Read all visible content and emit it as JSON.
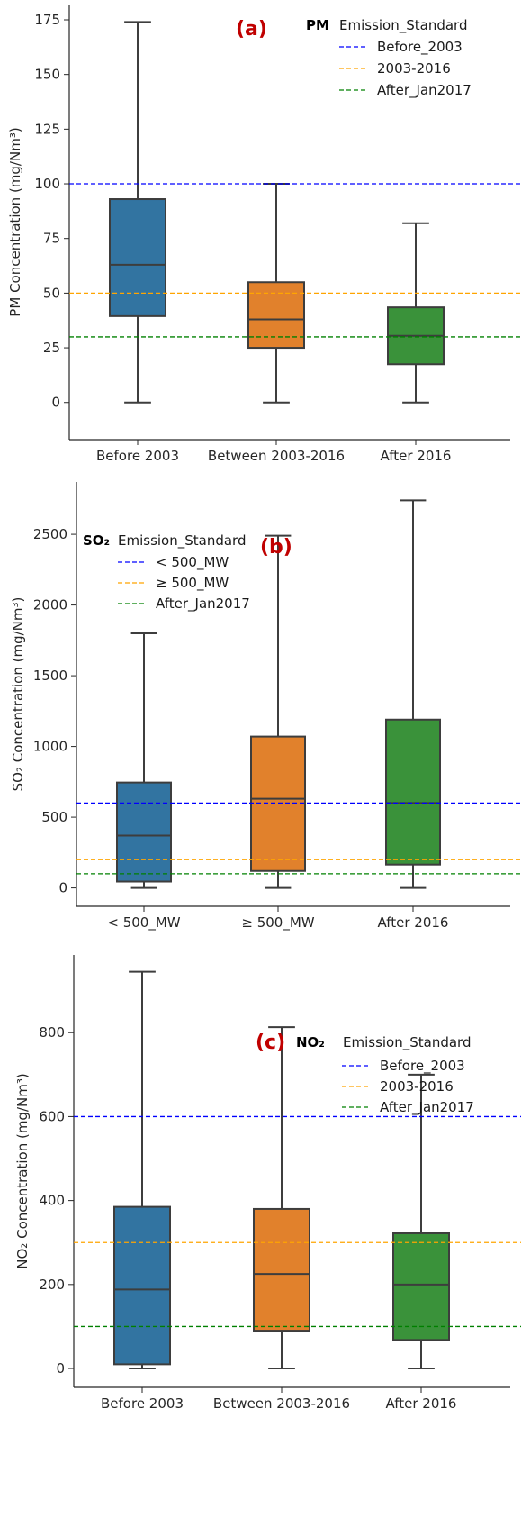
{
  "chart_data": [
    {
      "type": "box",
      "panel_label": "(a)",
      "ylabel": "PM Concentration (mg/Nm³)",
      "ylim": [
        -17,
        182
      ],
      "yticks": [
        0,
        25,
        50,
        75,
        100,
        125,
        150,
        175
      ],
      "categories": [
        "Before 2003",
        "Between 2003-2016",
        "After 2016"
      ],
      "colors": [
        "#3274a1",
        "#e1812c",
        "#3a923a"
      ],
      "boxes": [
        {
          "min": 0,
          "q1": 39.5,
          "median": 63,
          "q3": 93,
          "max": 174
        },
        {
          "min": 0,
          "q1": 25,
          "median": 38,
          "q3": 55,
          "max": 100
        },
        {
          "min": 0,
          "q1": 17.5,
          "median": 30.5,
          "q3": 43.5,
          "max": 82
        }
      ],
      "hlines": [
        {
          "value": 100,
          "color": "#0000ff",
          "label": "Before_2003"
        },
        {
          "value": 50,
          "color": "#ffa500",
          "label": "2003-2016"
        },
        {
          "value": 30,
          "color": "#008000",
          "label": "After_Jan2017"
        }
      ],
      "legend": {
        "pollutant": "PM",
        "title": "Emission_Standard",
        "position": "upper right"
      }
    },
    {
      "type": "box",
      "panel_label": "(b)",
      "ylabel": "SO₂ Concentration (mg/Nm³)",
      "ylim": [
        -130,
        2870
      ],
      "yticks": [
        0,
        500,
        1000,
        1500,
        2000,
        2500
      ],
      "categories": [
        "< 500_MW",
        "≥ 500_MW",
        "After 2016"
      ],
      "colors": [
        "#3274a1",
        "#e1812c",
        "#3a923a"
      ],
      "boxes": [
        {
          "min": 0,
          "q1": 45,
          "median": 370,
          "q3": 745,
          "max": 1800
        },
        {
          "min": 0,
          "q1": 120,
          "median": 630,
          "q3": 1070,
          "max": 2490
        },
        {
          "min": 0,
          "q1": 165,
          "median": 600,
          "q3": 1190,
          "max": 2740
        }
      ],
      "hlines": [
        {
          "value": 600,
          "color": "#0000ff",
          "label": "< 500_MW"
        },
        {
          "value": 200,
          "color": "#ffa500",
          "label": "≥ 500_MW"
        },
        {
          "value": 100,
          "color": "#008000",
          "label": "After_Jan2017"
        }
      ],
      "legend": {
        "pollutant": "SO₂",
        "title": "Emission_Standard",
        "position": "upper left"
      }
    },
    {
      "type": "box",
      "panel_label": "(c)",
      "ylabel": "NO₂ Concentration (mg/Nm³)",
      "ylim": [
        -45,
        985
      ],
      "yticks": [
        0,
        200,
        400,
        600,
        800
      ],
      "categories": [
        "Before 2003",
        "Between 2003-2016",
        "After 2016"
      ],
      "colors": [
        "#3274a1",
        "#e1812c",
        "#3a923a"
      ],
      "boxes": [
        {
          "min": 0,
          "q1": 10,
          "median": 188,
          "q3": 385,
          "max": 945
        },
        {
          "min": 0,
          "q1": 90,
          "median": 225,
          "q3": 380,
          "max": 813
        },
        {
          "min": 0,
          "q1": 68,
          "median": 200,
          "q3": 322,
          "max": 700
        }
      ],
      "hlines": [
        {
          "value": 600,
          "color": "#0000ff",
          "label": "Before_2003"
        },
        {
          "value": 300,
          "color": "#ffa500",
          "label": "2003-2016"
        },
        {
          "value": 100,
          "color": "#008000",
          "label": "After_Jan2017"
        }
      ],
      "legend": {
        "pollutant": "NO₂",
        "title": "Emission_Standard",
        "position": "upper right"
      }
    }
  ]
}
